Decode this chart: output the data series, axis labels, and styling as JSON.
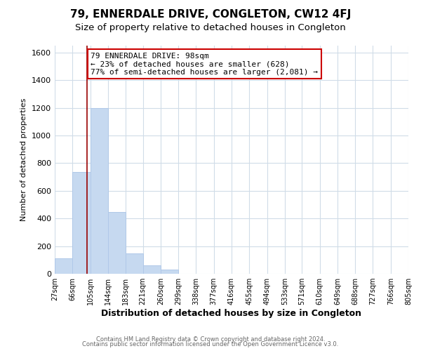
{
  "title": "79, ENNERDALE DRIVE, CONGLETON, CW12 4FJ",
  "subtitle": "Size of property relative to detached houses in Congleton",
  "xlabel": "Distribution of detached houses by size in Congleton",
  "ylabel": "Number of detached properties",
  "bin_edges": [
    27,
    66,
    105,
    144,
    183,
    221,
    260,
    299,
    338,
    377,
    416,
    455,
    494,
    533,
    571,
    610,
    649,
    688,
    727,
    766,
    805
  ],
  "bin_counts": [
    110,
    735,
    1200,
    445,
    145,
    60,
    33,
    0,
    0,
    0,
    0,
    0,
    0,
    0,
    0,
    0,
    0,
    0,
    0,
    0
  ],
  "bar_color": "#c6d9f0",
  "bar_edge_color": "#b0c8e8",
  "property_line_x": 98,
  "property_line_color": "#990000",
  "annotation_title": "79 ENNERDALE DRIVE: 98sqm",
  "annotation_line1": "← 23% of detached houses are smaller (628)",
  "annotation_line2": "77% of semi-detached houses are larger (2,081) →",
  "annotation_box_color": "#ffffff",
  "annotation_box_edgecolor": "#cc0000",
  "ylim": [
    0,
    1650
  ],
  "yticks": [
    0,
    200,
    400,
    600,
    800,
    1000,
    1200,
    1400,
    1600
  ],
  "footer1": "Contains HM Land Registry data © Crown copyright and database right 2024.",
  "footer2": "Contains public sector information licensed under the Open Government Licence v3.0.",
  "background_color": "#ffffff",
  "grid_color": "#d0dce8",
  "title_fontsize": 11,
  "subtitle_fontsize": 9.5,
  "ylabel_fontsize": 8,
  "xlabel_fontsize": 9,
  "tick_labels": [
    "27sqm",
    "66sqm",
    "105sqm",
    "144sqm",
    "183sqm",
    "221sqm",
    "260sqm",
    "299sqm",
    "338sqm",
    "377sqm",
    "416sqm",
    "455sqm",
    "494sqm",
    "533sqm",
    "571sqm",
    "610sqm",
    "649sqm",
    "688sqm",
    "727sqm",
    "766sqm",
    "805sqm"
  ]
}
